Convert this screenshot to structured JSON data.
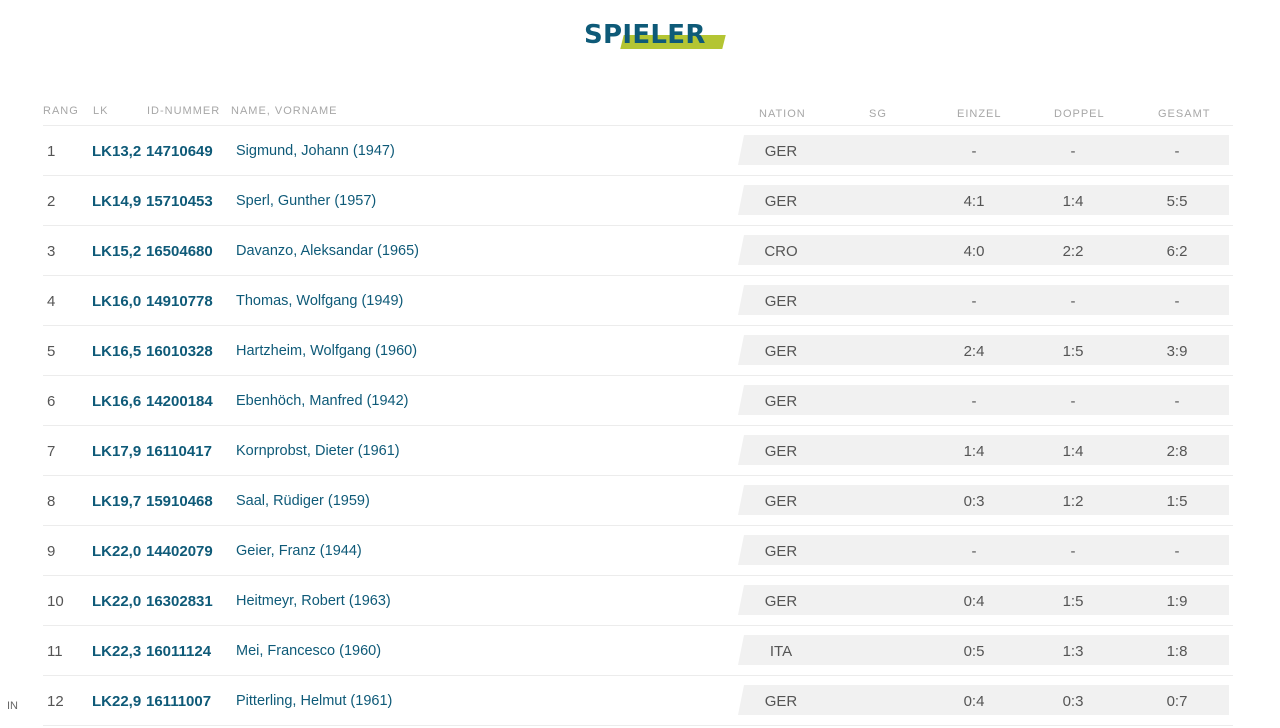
{
  "title": "SPIELER",
  "colors": {
    "brand": "#0e5a78",
    "accent": "#b4c533",
    "row_bg": "#f1f1f1"
  },
  "headers": {
    "rang": "RANG",
    "lk": "LK",
    "id": "ID-NUMMER",
    "name": "NAME, VORNAME",
    "nation": "NATION",
    "sg": "SG",
    "einzel": "EINZEL",
    "doppel": "DOPPEL",
    "gesamt": "GESAMT"
  },
  "rows": [
    {
      "rank": "1",
      "lk": "LK13,2",
      "id": "14710649",
      "name": "Sigmund, Johann (1947)",
      "nation": "GER",
      "einzel": "-",
      "doppel": "-",
      "gesamt": "-"
    },
    {
      "rank": "2",
      "lk": "LK14,9",
      "id": "15710453",
      "name": "Sperl, Gunther (1957)",
      "nation": "GER",
      "einzel": "4:1",
      "doppel": "1:4",
      "gesamt": "5:5"
    },
    {
      "rank": "3",
      "lk": "LK15,2",
      "id": "16504680",
      "name": "Davanzo, Aleksandar (1965)",
      "nation": "CRO",
      "einzel": "4:0",
      "doppel": "2:2",
      "gesamt": "6:2"
    },
    {
      "rank": "4",
      "lk": "LK16,0",
      "id": "14910778",
      "name": "Thomas, Wolfgang (1949)",
      "nation": "GER",
      "einzel": "-",
      "doppel": "-",
      "gesamt": "-"
    },
    {
      "rank": "5",
      "lk": "LK16,5",
      "id": "16010328",
      "name": "Hartzheim, Wolfgang (1960)",
      "nation": "GER",
      "einzel": "2:4",
      "doppel": "1:5",
      "gesamt": "3:9"
    },
    {
      "rank": "6",
      "lk": "LK16,6",
      "id": "14200184",
      "name": "Ebenhöch, Manfred (1942)",
      "nation": "GER",
      "einzel": "-",
      "doppel": "-",
      "gesamt": "-"
    },
    {
      "rank": "7",
      "lk": "LK17,9",
      "id": "16110417",
      "name": "Kornprobst, Dieter (1961)",
      "nation": "GER",
      "einzel": "1:4",
      "doppel": "1:4",
      "gesamt": "2:8"
    },
    {
      "rank": "8",
      "lk": "LK19,7",
      "id": "15910468",
      "name": "Saal, Rüdiger (1959)",
      "nation": "GER",
      "einzel": "0:3",
      "doppel": "1:2",
      "gesamt": "1:5"
    },
    {
      "rank": "9",
      "lk": "LK22,0",
      "id": "14402079",
      "name": "Geier, Franz (1944)",
      "nation": "GER",
      "einzel": "-",
      "doppel": "-",
      "gesamt": "-"
    },
    {
      "rank": "10",
      "lk": "LK22,0",
      "id": "16302831",
      "name": "Heitmeyr, Robert (1963)",
      "nation": "GER",
      "einzel": "0:4",
      "doppel": "1:5",
      "gesamt": "1:9"
    },
    {
      "rank": "11",
      "lk": "LK22,3",
      "id": "16011124",
      "name": "Mei, Francesco (1960)",
      "nation": "ITA",
      "einzel": "0:5",
      "doppel": "1:3",
      "gesamt": "1:8"
    },
    {
      "rank": "12",
      "lk": "LK22,9",
      "id": "16111007",
      "name": "Pitterling, Helmut (1961)",
      "nation": "GER",
      "einzel": "0:4",
      "doppel": "0:3",
      "gesamt": "0:7"
    }
  ],
  "corner_label": "IN"
}
